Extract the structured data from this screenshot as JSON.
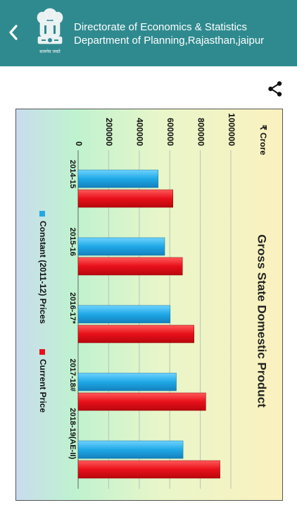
{
  "header": {
    "line1": "Directorate of Economics & Statistics",
    "line2": "Department of Planning,Rajasthan,jaipur",
    "emblem_caption": "सत्यमेव जयते",
    "back_icon": "chevron-left-icon",
    "background": "#2f8a8f"
  },
  "toolbar": {
    "share_icon": "share-icon"
  },
  "chart_data": {
    "type": "bar",
    "orientation": "rotated-90-clockwise",
    "title": "Gross State Domestic Product",
    "ylabel": "₹ Crore",
    "ylim": [
      0,
      1000000
    ],
    "yticks": [
      0,
      200000,
      400000,
      600000,
      800000,
      1000000
    ],
    "ytick_labels": [
      "0",
      "200000",
      "400000",
      "600000",
      "800000",
      "1000000"
    ],
    "categories": [
      "2014-15",
      "2015-16",
      "2016-17*",
      "2017-18#",
      "2018-19(AE-II)"
    ],
    "series": [
      {
        "name": "Constant (2011-12) Prices",
        "color": "#1fa8e6",
        "values": [
          524000,
          567000,
          603000,
          643000,
          687000
        ]
      },
      {
        "name": "Current Price",
        "color": "#e8101a",
        "values": [
          621000,
          683000,
          759000,
          836000,
          929000
        ]
      }
    ],
    "legend_position": "bottom",
    "grid": true
  }
}
